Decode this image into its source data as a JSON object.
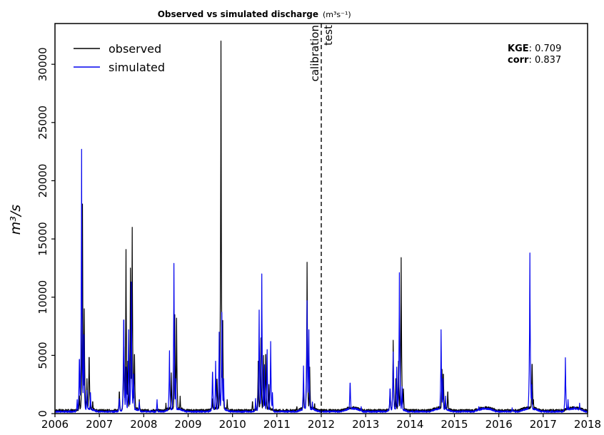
{
  "chart_data": {
    "type": "line",
    "title": "Observed vs simulated discharge",
    "title_unit": "(m³s⁻¹)",
    "ylabel": "m³/s",
    "xlim": [
      2006,
      2018
    ],
    "ylim": [
      0,
      33500
    ],
    "xticks": [
      "2006",
      "2007",
      "2008",
      "2009",
      "2010",
      "2011",
      "2012",
      "2013",
      "2014",
      "2015",
      "2016",
      "2017",
      "2018"
    ],
    "yticks": [
      "0",
      "5000",
      "10000",
      "15000",
      "20000",
      "25000",
      "30000"
    ],
    "legend": {
      "placement": "top-left",
      "entries": [
        {
          "label": "observed",
          "color": "#000000"
        },
        {
          "label": "simulated",
          "color": "#0000ee"
        }
      ]
    },
    "metrics": [
      {
        "key": "KGE",
        "value": ": 0.709"
      },
      {
        "key": "corr",
        "value": ": 0.837"
      }
    ],
    "split": {
      "x": 2012.0,
      "left_label": "calibration",
      "right_label": "test"
    },
    "series": [
      {
        "name": "observed",
        "color": "#000000",
        "baseline": 150,
        "peaks": [
          [
            2006.55,
            1800
          ],
          [
            2006.62,
            18000
          ],
          [
            2006.66,
            9000
          ],
          [
            2006.72,
            3000
          ],
          [
            2006.77,
            5700
          ],
          [
            2006.85,
            1200
          ],
          [
            2007.45,
            2200
          ],
          [
            2007.55,
            6800
          ],
          [
            2007.6,
            14100
          ],
          [
            2007.64,
            4500
          ],
          [
            2007.7,
            12500
          ],
          [
            2007.74,
            16000
          ],
          [
            2007.79,
            6000
          ],
          [
            2007.9,
            1200
          ],
          [
            2008.5,
            900
          ],
          [
            2008.62,
            3500
          ],
          [
            2008.7,
            8500
          ],
          [
            2008.74,
            8200
          ],
          [
            2008.82,
            1500
          ],
          [
            2009.55,
            1500
          ],
          [
            2009.65,
            3500
          ],
          [
            2009.74,
            32000
          ],
          [
            2009.78,
            8000
          ],
          [
            2009.88,
            1200
          ],
          [
            2010.45,
            1200
          ],
          [
            2010.58,
            4500
          ],
          [
            2010.64,
            6500
          ],
          [
            2010.7,
            5000
          ],
          [
            2010.75,
            6000
          ],
          [
            2010.82,
            2500
          ],
          [
            2011.45,
            700
          ],
          [
            2011.6,
            2500
          ],
          [
            2011.68,
            13000
          ],
          [
            2011.74,
            4000
          ],
          [
            2011.85,
            1000
          ],
          [
            2012.7,
            500
          ],
          [
            2013.3,
            400
          ],
          [
            2013.55,
            2200
          ],
          [
            2013.62,
            6300
          ],
          [
            2013.68,
            3000
          ],
          [
            2013.74,
            4500
          ],
          [
            2013.8,
            13400
          ],
          [
            2013.85,
            2500
          ],
          [
            2014.72,
            3800
          ],
          [
            2014.75,
            4000
          ],
          [
            2014.85,
            2200
          ],
          [
            2015.6,
            300
          ],
          [
            2016.2,
            400
          ],
          [
            2016.75,
            5000
          ],
          [
            2016.78,
            1200
          ],
          [
            2017.5,
            400
          ],
          [
            2017.65,
            300
          ]
        ]
      },
      {
        "name": "simulated",
        "color": "#0000ee",
        "baseline": 100,
        "peaks": [
          [
            2006.5,
            1200
          ],
          [
            2006.55,
            5500
          ],
          [
            2006.6,
            22700
          ],
          [
            2006.65,
            8000
          ],
          [
            2006.72,
            2000
          ],
          [
            2006.8,
            1800
          ],
          [
            2007.45,
            1500
          ],
          [
            2007.55,
            9500
          ],
          [
            2007.6,
            4000
          ],
          [
            2007.66,
            7200
          ],
          [
            2007.72,
            11300
          ],
          [
            2007.77,
            4000
          ],
          [
            2007.9,
            1000
          ],
          [
            2008.3,
            1200
          ],
          [
            2008.58,
            5400
          ],
          [
            2008.68,
            12900
          ],
          [
            2008.72,
            3000
          ],
          [
            2009.55,
            4200
          ],
          [
            2009.62,
            4500
          ],
          [
            2009.7,
            7000
          ],
          [
            2009.76,
            8700
          ],
          [
            2009.8,
            3000
          ],
          [
            2010.52,
            1300
          ],
          [
            2010.6,
            8900
          ],
          [
            2010.66,
            12000
          ],
          [
            2010.72,
            4200
          ],
          [
            2010.78,
            5500
          ],
          [
            2010.86,
            6200
          ],
          [
            2010.9,
            1800
          ],
          [
            2011.6,
            4100
          ],
          [
            2011.68,
            9700
          ],
          [
            2011.72,
            7200
          ],
          [
            2011.8,
            1000
          ],
          [
            2012.65,
            3100
          ],
          [
            2012.9,
            600
          ],
          [
            2013.55,
            2500
          ],
          [
            2013.62,
            5300
          ],
          [
            2013.7,
            4000
          ],
          [
            2013.76,
            12100
          ],
          [
            2013.82,
            2300
          ],
          [
            2014.7,
            7200
          ],
          [
            2014.74,
            3000
          ],
          [
            2014.8,
            1500
          ],
          [
            2015.55,
            700
          ],
          [
            2016.3,
            500
          ],
          [
            2016.7,
            13800
          ],
          [
            2016.74,
            2500
          ],
          [
            2017.5,
            4800
          ],
          [
            2017.56,
            1200
          ],
          [
            2017.7,
            600
          ],
          [
            2017.82,
            900
          ]
        ]
      }
    ]
  }
}
